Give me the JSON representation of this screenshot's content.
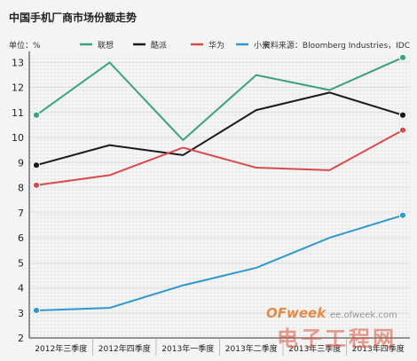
{
  "chart_data": {
    "type": "line",
    "title": "中国手机厂商市场份额走势",
    "ylabel": "单位：%",
    "source": "资料来源：Bloomberg Industries，IDC",
    "categories": [
      "2012年三季度",
      "2012年四季度",
      "2013年一季度",
      "2013年二季度",
      "2013年三季度",
      "2013年四季度"
    ],
    "ylim": [
      2,
      13.3
    ],
    "yticks": [
      2,
      3,
      4,
      5,
      6,
      7,
      8,
      9,
      10,
      11,
      12,
      13
    ],
    "grid": true,
    "legend_position": "top",
    "series": [
      {
        "name": "联想",
        "color": "#3aa27e",
        "values": [
          10.9,
          13.0,
          9.9,
          12.5,
          11.9,
          13.2
        ]
      },
      {
        "name": "酷派",
        "color": "#1a1a1a",
        "values": [
          8.9,
          9.7,
          9.3,
          11.1,
          11.8,
          10.9
        ]
      },
      {
        "name": "华为",
        "color": "#d94a4a",
        "values": [
          8.1,
          8.5,
          9.6,
          8.8,
          8.7,
          10.3
        ]
      },
      {
        "name": "小米",
        "color": "#2f98cf",
        "values": [
          3.1,
          3.2,
          4.1,
          4.8,
          6.0,
          6.9
        ]
      }
    ]
  },
  "watermark": {
    "brand": "OFweek",
    "site": "ee.ofweek.com",
    "cn": "电子工程网"
  }
}
